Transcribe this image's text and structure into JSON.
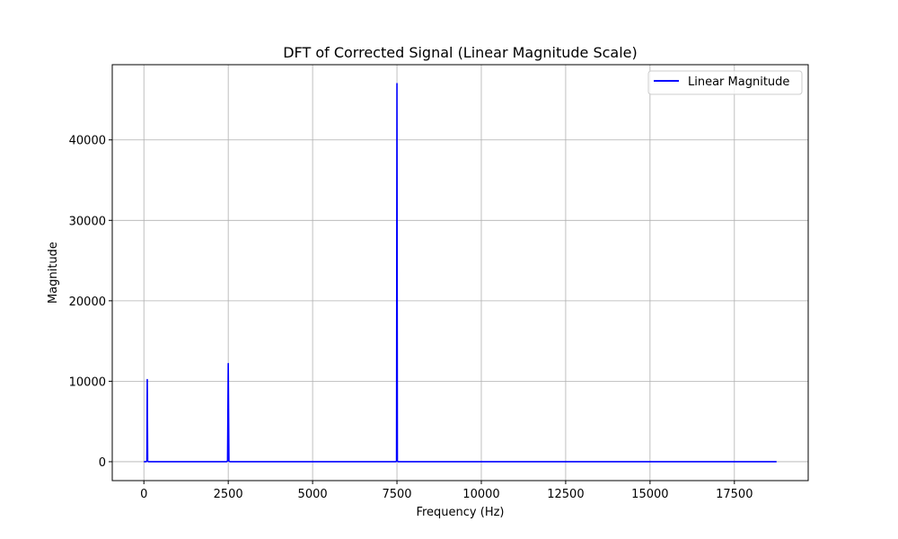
{
  "chart_data": {
    "type": "line",
    "title": "DFT of Corrected Signal (Linear Magnitude Scale)",
    "xlabel": "Frequency (Hz)",
    "ylabel": "Magnitude",
    "xlim": [
      -937.5,
      19687.5
    ],
    "ylim": [
      -2350,
      49350
    ],
    "x_ticks": [
      0,
      2500,
      5000,
      7500,
      10000,
      12500,
      15000,
      17500
    ],
    "x_tick_labels": [
      "0",
      "2500",
      "5000",
      "7500",
      "10000",
      "12500",
      "15000",
      "17500"
    ],
    "y_ticks": [
      0,
      10000,
      20000,
      30000,
      40000
    ],
    "y_tick_labels": [
      "0",
      "10000",
      "20000",
      "30000",
      "40000"
    ],
    "grid": true,
    "legend_position": "upper right",
    "series": [
      {
        "name": "Linear Magnitude",
        "color": "#0000ff",
        "x": [
          0,
          70,
          88,
          100,
          112,
          130,
          2450,
          2480,
          2500,
          2520,
          2550,
          7470,
          7488,
          7500,
          7512,
          7530,
          18750
        ],
        "y": [
          0,
          0,
          100,
          10200,
          100,
          0,
          0,
          100,
          12200,
          100,
          0,
          0,
          100,
          47000,
          100,
          0,
          0
        ]
      }
    ]
  }
}
